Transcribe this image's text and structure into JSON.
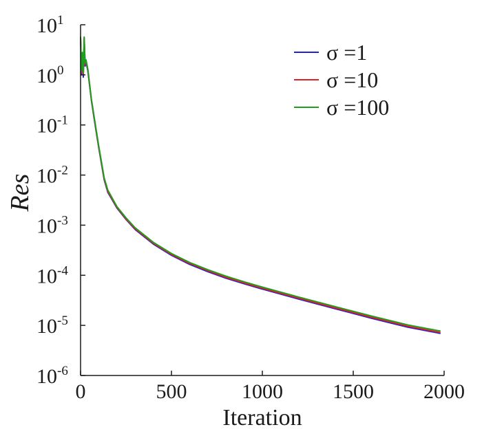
{
  "chart_data": {
    "type": "line",
    "xlabel": "Iteration",
    "ylabel": "Res",
    "xlim": [
      0,
      2000
    ],
    "ylim": [
      1e-06,
      10
    ],
    "y_scale": "log",
    "grid": false,
    "legend_position": "top-right",
    "x_ticks": [
      "0",
      "500",
      "1000",
      "1500",
      "2000"
    ],
    "y_ticks": [
      {
        "base": "10",
        "exp": "1"
      },
      {
        "base": "10",
        "exp": "0"
      },
      {
        "base": "10",
        "exp": "-1"
      },
      {
        "base": "10",
        "exp": "-2"
      },
      {
        "base": "10",
        "exp": "-3"
      },
      {
        "base": "10",
        "exp": "-4"
      },
      {
        "base": "10",
        "exp": "-5"
      },
      {
        "base": "10",
        "exp": "-6"
      }
    ],
    "series": [
      {
        "name": "σ =1",
        "color": "#1f1fd6",
        "x": [
          0,
          5,
          10,
          15,
          20,
          25,
          30,
          40,
          50,
          60,
          80,
          100,
          130,
          150,
          170,
          200,
          250,
          300,
          400,
          500,
          600,
          700,
          800,
          900,
          1000,
          1200,
          1400,
          1600,
          1800,
          1980
        ],
        "y": [
          5.5,
          1.0,
          2.5,
          0.9,
          5.3,
          1.5,
          1.8,
          1.2,
          0.6,
          0.3,
          0.1,
          0.035,
          0.008,
          0.0045,
          0.0034,
          0.0022,
          0.0013,
          0.00082,
          0.00042,
          0.00025,
          0.000165,
          0.000118,
          8.75e-05,
          6.75e-05,
          5.3e-05,
          3.35e-05,
          2.15e-05,
          1.39e-05,
          9.2e-06,
          6.9e-06
        ]
      },
      {
        "name": "σ =10",
        "color": "#e02020",
        "x": [
          0,
          5,
          10,
          15,
          20,
          25,
          30,
          40,
          50,
          60,
          80,
          100,
          130,
          150,
          170,
          200,
          250,
          300,
          400,
          500,
          600,
          700,
          800,
          900,
          1000,
          1200,
          1400,
          1600,
          1800,
          1980
        ],
        "y": [
          5.6,
          1.1,
          2.7,
          1.0,
          5.5,
          1.6,
          1.9,
          1.25,
          0.62,
          0.31,
          0.105,
          0.036,
          0.0083,
          0.0047,
          0.0035,
          0.00226,
          0.00134,
          0.00085,
          0.000435,
          0.00026,
          0.000172,
          0.000123,
          9.1e-05,
          7e-05,
          5.5e-05,
          3.48e-05,
          2.24e-05,
          1.45e-05,
          9.6e-06,
          7.2e-06
        ]
      },
      {
        "name": "σ =100",
        "color": "#1e9e1e",
        "x": [
          0,
          5,
          10,
          15,
          20,
          25,
          30,
          40,
          50,
          60,
          80,
          100,
          130,
          150,
          170,
          200,
          250,
          300,
          400,
          500,
          600,
          700,
          800,
          900,
          1000,
          1200,
          1400,
          1600,
          1800,
          1980
        ],
        "y": [
          5.8,
          1.2,
          2.8,
          1.1,
          5.7,
          1.7,
          2.0,
          1.3,
          0.65,
          0.32,
          0.11,
          0.038,
          0.0088,
          0.005,
          0.0037,
          0.00235,
          0.0014,
          0.00089,
          0.000455,
          0.000272,
          0.00018,
          0.000129,
          9.6e-05,
          7.4e-05,
          5.8e-05,
          3.68e-05,
          2.37e-05,
          1.54e-05,
          1.02e-05,
          7.7e-06
        ]
      }
    ]
  }
}
